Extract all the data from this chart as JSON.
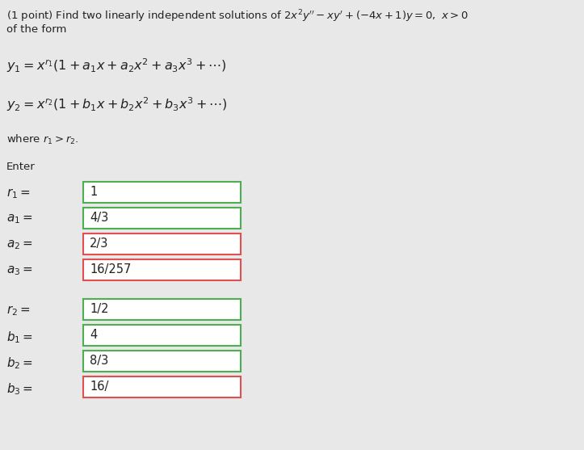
{
  "bg_color": "#e8e8e8",
  "text_color": "#222222",
  "box_fill": "#ffffff",
  "green_border": "#4caf50",
  "red_border": "#e05050",
  "font_size_title": 9.5,
  "font_size_formula": 11.5,
  "font_size_field_label": 11.0,
  "font_size_field_value": 10.5,
  "fields_group1": [
    {
      "label": "$r_1 = $",
      "value": "1",
      "border": "green"
    },
    {
      "label": "$a_1 = $",
      "value": "4/3",
      "border": "green"
    },
    {
      "label": "$a_2 = $",
      "value": "2/3",
      "border": "red"
    },
    {
      "label": "$a_3 = $",
      "value": "16/257",
      "border": "red"
    }
  ],
  "fields_group2": [
    {
      "label": "$r_2 = $",
      "value": "1/2",
      "border": "green"
    },
    {
      "label": "$b_1 = $",
      "value": "4",
      "border": "green"
    },
    {
      "label": "$b_2 = $",
      "value": "8/3",
      "border": "green"
    },
    {
      "label": "$b_3 = $",
      "value": "16/",
      "border": "red"
    }
  ]
}
